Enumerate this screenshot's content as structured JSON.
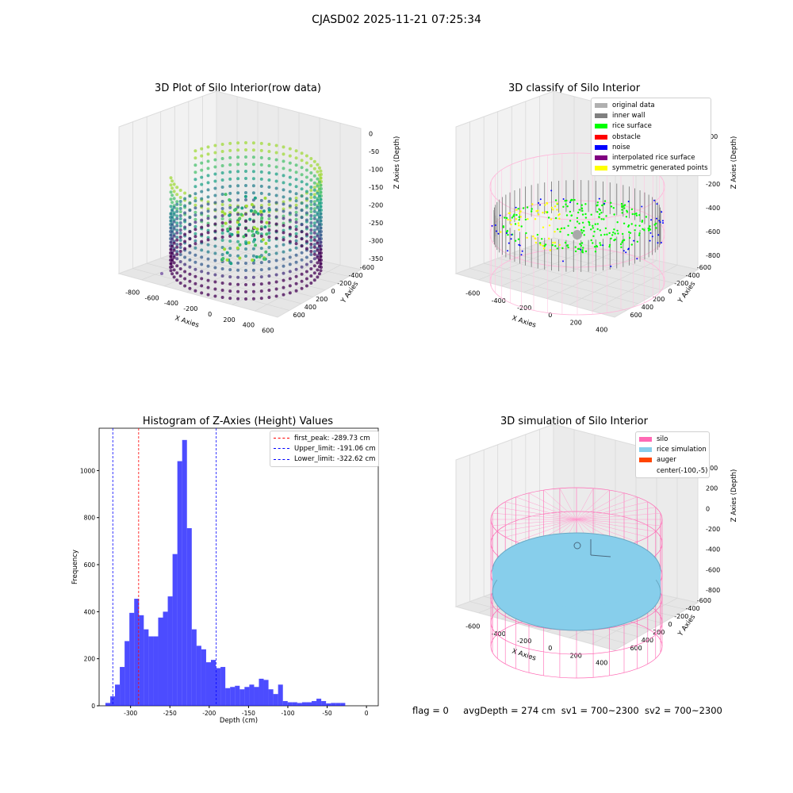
{
  "figure": {
    "title": "CJASD02 2025-11-21 07:25:34",
    "status": {
      "flag": "flag = 0",
      "avg_depth": "avgDepth = 274 cm",
      "sv1": "sv1 = 700~2300",
      "sv2": "sv2 = 700~2300"
    }
  },
  "chart_data": [
    {
      "type": "scatter",
      "title": "3D Plot of Silo Interior(row data)",
      "xlabel": "X Axies",
      "ylabel": "Y Axies",
      "zlabel": "Z Axies (Depth)",
      "x_ticks": [
        "-800",
        "-600",
        "-400",
        "-200",
        "0",
        "200",
        "400",
        "600"
      ],
      "y_ticks": [
        "-600",
        "-400",
        "-200",
        "0",
        "200",
        "400",
        "600"
      ],
      "z_ticks": [
        "0",
        "-50",
        "-100",
        "-150",
        "-200",
        "-250",
        "-300",
        "-350"
      ],
      "xlim": [
        -850,
        650
      ],
      "ylim": [
        -650,
        650
      ],
      "zlim": [
        -380,
        10
      ],
      "colormap": "viridis",
      "description_points": "cylindrical wall point cloud, radius ~500 cm, depth 0 to -350 cm"
    },
    {
      "type": "scatter",
      "title": "3D classify of Silo Interior",
      "xlabel": "X Axies",
      "ylabel": "Y Axies",
      "zlabel": "Z Axies (Depth)",
      "x_ticks": [
        "-600",
        "-400",
        "-200",
        "0",
        "200",
        "400"
      ],
      "y_ticks": [
        "-600",
        "-400",
        "-200",
        "0",
        "200",
        "400",
        "600"
      ],
      "z_ticks": [
        "200",
        "0",
        "-200",
        "-400",
        "-600",
        "-800"
      ],
      "legend": [
        {
          "label": "original data",
          "color": "#b0b0b0"
        },
        {
          "label": "inner wall",
          "color": "#808080"
        },
        {
          "label": "rice surface",
          "color": "#00ff00"
        },
        {
          "label": "obstacle",
          "color": "#ff0000"
        },
        {
          "label": "noise",
          "color": "#0000ff"
        },
        {
          "label": "interpolated rice surface",
          "color": "#800080"
        },
        {
          "label": "symmetric generated points",
          "color": "#ffff00"
        }
      ],
      "legend_placement": "top-right"
    },
    {
      "type": "bar",
      "title": "Histogram of Z-Axies (Height) Values",
      "xlabel": "Depth (cm)",
      "ylabel": "Frequency",
      "xlim": [
        -340,
        15
      ],
      "ylim": [
        0,
        1180
      ],
      "x_ticks": [
        -300,
        -250,
        -200,
        -150,
        -100,
        -50,
        0
      ],
      "y_ticks": [
        0,
        200,
        400,
        600,
        800,
        1000
      ],
      "bin_start": -332,
      "bin_width": 6.1,
      "values": [
        12,
        40,
        90,
        165,
        275,
        395,
        455,
        385,
        325,
        295,
        295,
        375,
        400,
        465,
        645,
        1040,
        1130,
        755,
        325,
        255,
        240,
        185,
        195,
        160,
        165,
        75,
        80,
        85,
        70,
        80,
        90,
        80,
        115,
        110,
        70,
        50,
        90,
        20,
        15,
        15,
        12,
        15,
        15,
        20,
        30,
        20,
        10,
        12,
        12,
        12
      ],
      "color": "#0000ff",
      "lines": [
        {
          "label": "first_peak: -289.73 cm",
          "x": -289.73,
          "color": "#ff0000"
        },
        {
          "label": "Upper_limit: -191.06 cm",
          "x": -191.06,
          "color": "#0000ff"
        },
        {
          "label": "Lower_limit: -322.62 cm",
          "x": -322.62,
          "color": "#0000ff"
        }
      ],
      "legend_placement": "top-right"
    },
    {
      "type": "scatter",
      "title": "3D simulation of Silo Interior",
      "xlabel": "X Axies",
      "ylabel": "Y Axies",
      "zlabel": "Z Axies (Depth)",
      "x_ticks": [
        "-600",
        "-400",
        "-200",
        "0",
        "200",
        "400"
      ],
      "y_ticks": [
        "-600",
        "-400",
        "-200",
        "0",
        "200",
        "400",
        "600"
      ],
      "z_ticks": [
        "400",
        "200",
        "0",
        "-200",
        "-400",
        "-600",
        "-800"
      ],
      "legend": [
        {
          "label": "silo",
          "color": "#ff69b4"
        },
        {
          "label": "rice simulation",
          "color": "#87ceeb"
        },
        {
          "label": "auger",
          "color": "#ff4500"
        },
        {
          "label": "center(-100,-5)",
          "color": ""
        }
      ],
      "legend_placement": "top-right"
    }
  ]
}
